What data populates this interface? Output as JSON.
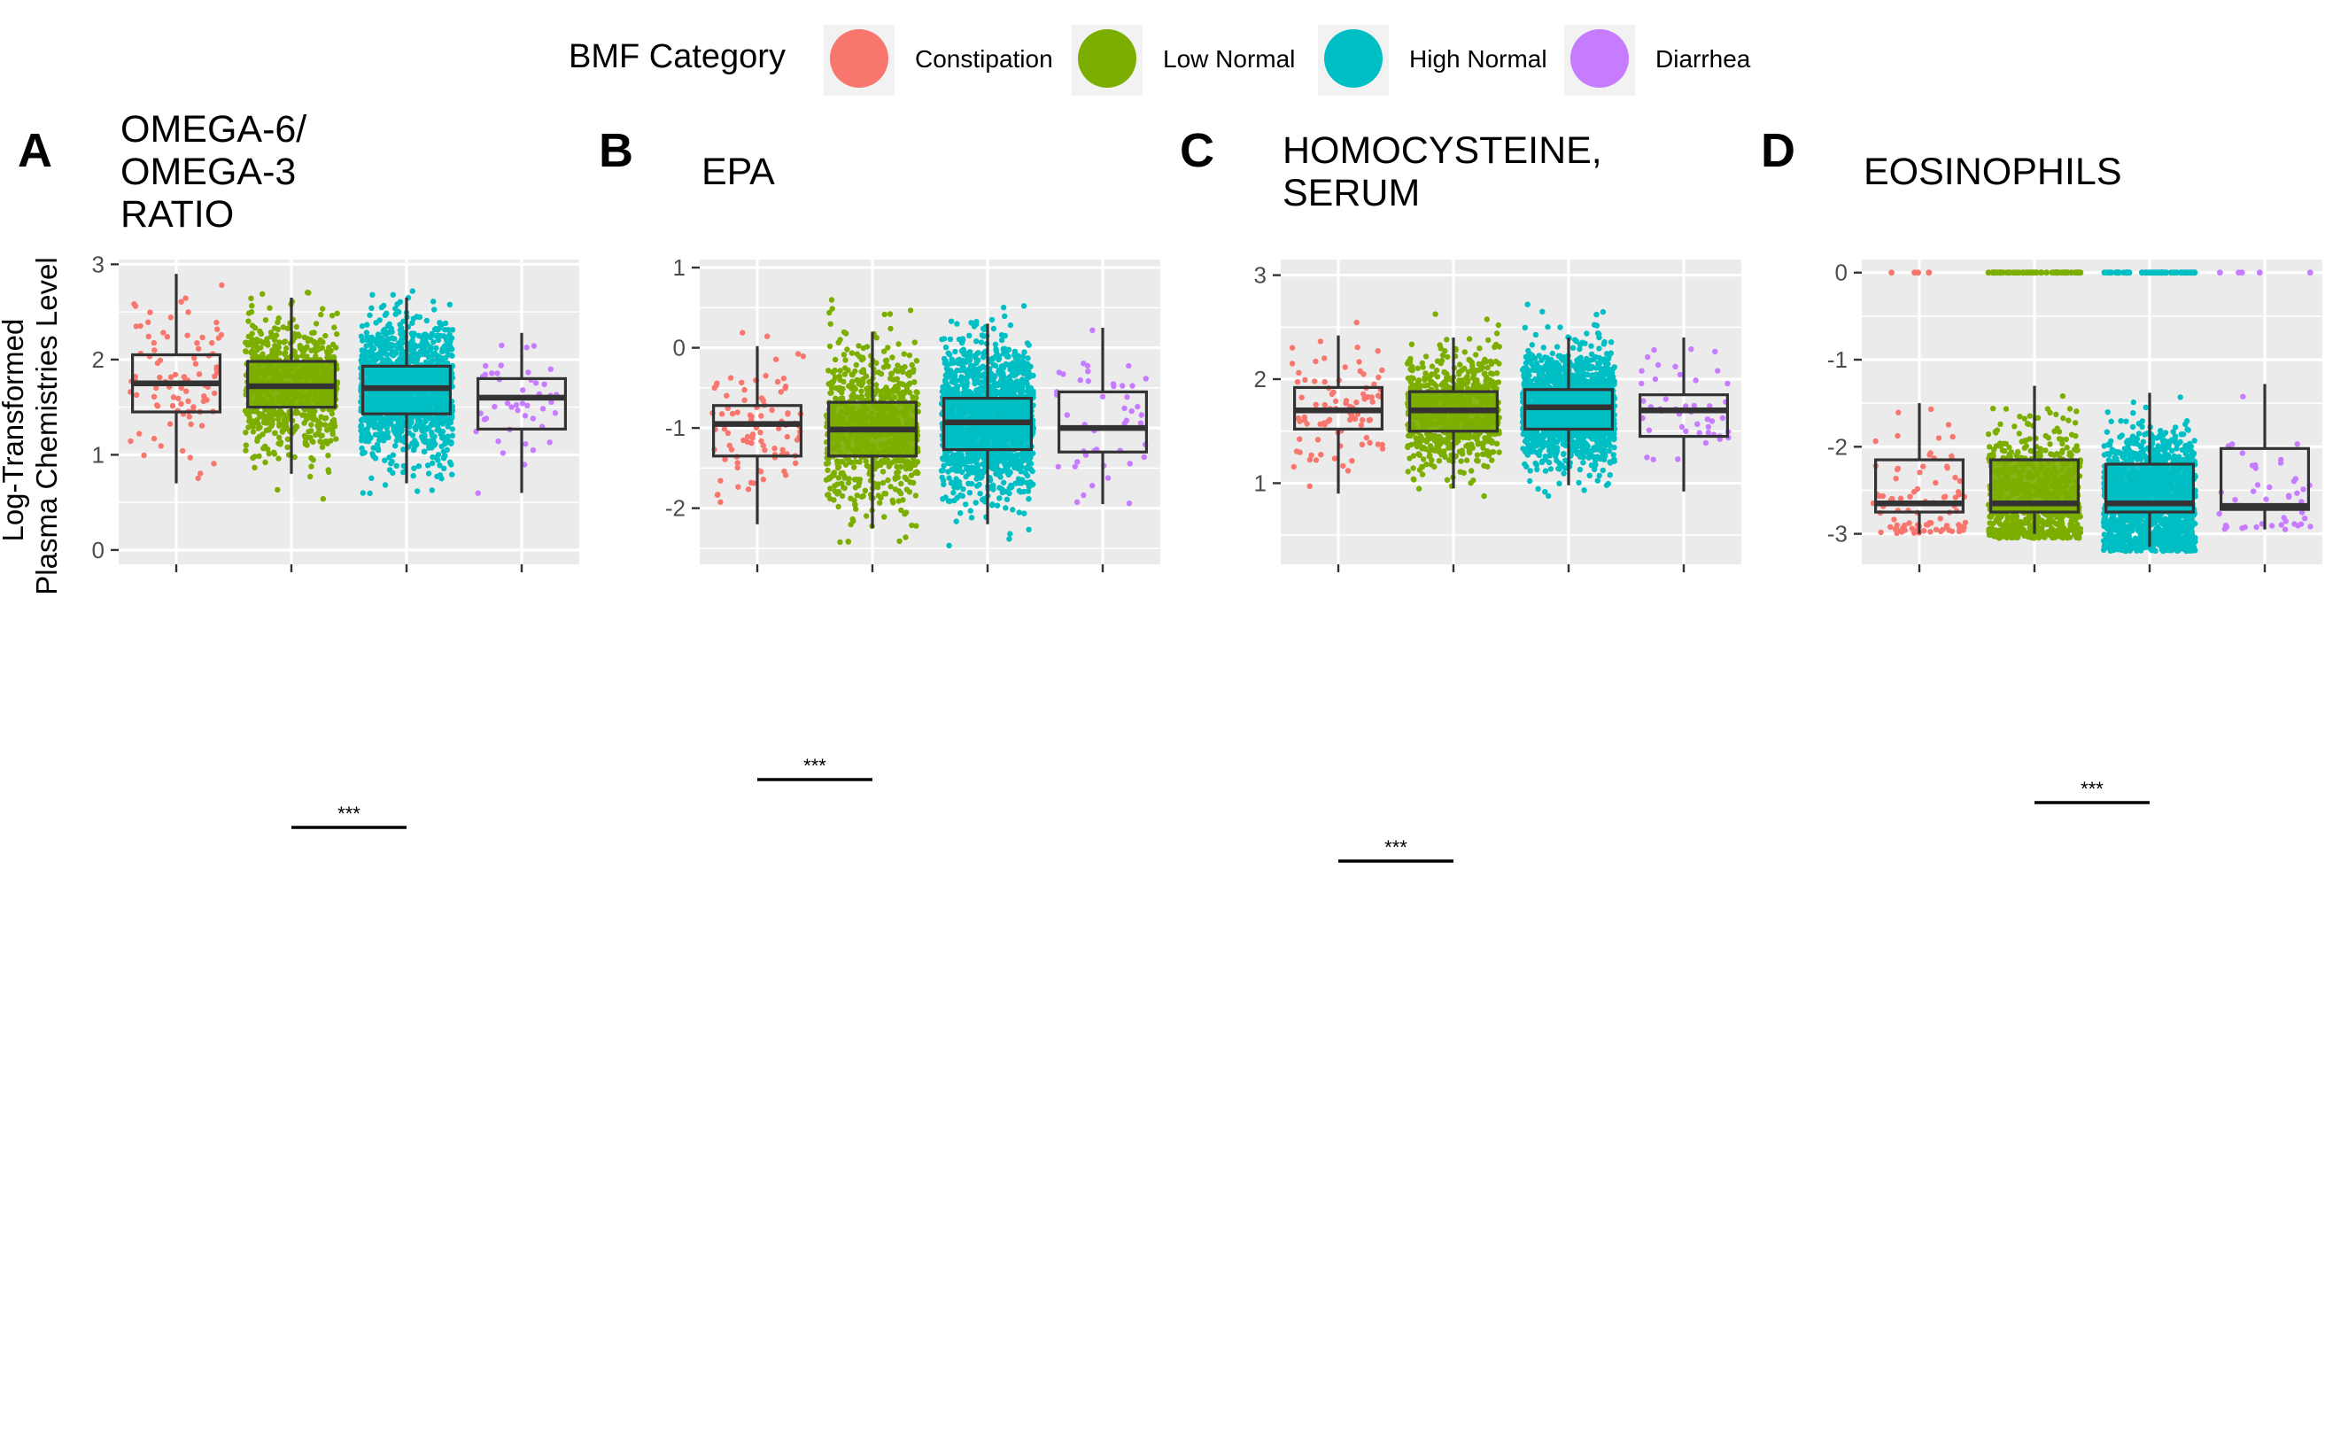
{
  "legend": {
    "title": "BMF Category",
    "placement": "top",
    "entries": [
      {
        "label": "Constipation",
        "color": "#F8766D"
      },
      {
        "label": "Low Normal",
        "color": "#7CAE00"
      },
      {
        "label": "High Normal",
        "color": "#00BFC4"
      },
      {
        "label": "Diarrhea",
        "color": "#C77CFF"
      }
    ]
  },
  "y_axis_title": [
    "Log-Transformed",
    "Plasma Chemistries Level"
  ],
  "panel_background": "#EBEBEB",
  "chart_data": [
    {
      "type": "boxplot",
      "panel_tag": "A",
      "title_lines": [
        "OMEGA-6/",
        "OMEGA-3",
        "RATIO"
      ],
      "categories": [
        "Constipation",
        "Low Normal",
        "High Normal",
        "Diarrhea"
      ],
      "ylim": [
        -0.15,
        3.05
      ],
      "y_ticks": [
        0,
        1,
        2,
        3
      ],
      "y_tick_labels": [
        "0",
        "1",
        "2",
        "3"
      ],
      "grid": true,
      "boxes": [
        {
          "category": "Constipation",
          "whisker_low": 0.7,
          "q1": 1.45,
          "median": 1.75,
          "q3": 2.05,
          "whisker_high": 2.9,
          "y_range": [
            0.7,
            2.95
          ],
          "n_points": 90,
          "filled": false
        },
        {
          "category": "Low Normal",
          "whisker_low": 0.8,
          "q1": 1.5,
          "median": 1.72,
          "q3": 1.98,
          "whisker_high": 2.65,
          "y_range": [
            0.45,
            2.8
          ],
          "n_points": 700,
          "filled": true
        },
        {
          "category": "High Normal",
          "whisker_low": 0.7,
          "q1": 1.43,
          "median": 1.7,
          "q3": 1.93,
          "whisker_high": 2.65,
          "y_range": [
            -0.05,
            2.72
          ],
          "n_points": 1300,
          "filled": true
        },
        {
          "category": "Diarrhea",
          "whisker_low": 0.6,
          "q1": 1.27,
          "median": 1.6,
          "q3": 1.8,
          "whisker_high": 2.28,
          "y_range": [
            0.55,
            2.3
          ],
          "n_points": 45,
          "filled": false
        }
      ],
      "significance": {
        "label": "***",
        "from": "Low Normal",
        "to": "High Normal"
      }
    },
    {
      "type": "boxplot",
      "panel_tag": "B",
      "title_lines": [
        "EPA"
      ],
      "categories": [
        "Constipation",
        "Low Normal",
        "High Normal",
        "Diarrhea"
      ],
      "ylim": [
        -2.7,
        1.1
      ],
      "y_ticks": [
        1,
        0,
        -1,
        -2
      ],
      "y_tick_labels": [
        "1",
        "0",
        "-1",
        "-2"
      ],
      "grid": true,
      "boxes": [
        {
          "category": "Constipation",
          "whisker_low": -2.2,
          "q1": -1.35,
          "median": -0.95,
          "q3": -0.72,
          "whisker_high": 0.02,
          "y_range": [
            -2.25,
            0.7
          ],
          "n_points": 90,
          "filled": false
        },
        {
          "category": "Low Normal",
          "whisker_low": -2.25,
          "q1": -1.35,
          "median": -1.02,
          "q3": -0.68,
          "whisker_high": 0.2,
          "y_range": [
            -2.45,
            0.6
          ],
          "n_points": 750,
          "filled": true
        },
        {
          "category": "High Normal",
          "whisker_low": -2.2,
          "q1": -1.27,
          "median": -0.93,
          "q3": -0.63,
          "whisker_high": 0.3,
          "y_range": [
            -2.55,
            0.9
          ],
          "n_points": 1500,
          "filled": true
        },
        {
          "category": "Diarrhea",
          "whisker_low": -1.95,
          "q1": -1.3,
          "median": -1.0,
          "q3": -0.55,
          "whisker_high": 0.25,
          "y_range": [
            -1.95,
            0.4
          ],
          "n_points": 45,
          "filled": false
        }
      ],
      "significance": {
        "label": "***",
        "from": "Constipation",
        "to": "Low Normal"
      }
    },
    {
      "type": "boxplot",
      "panel_tag": "C",
      "title_lines": [
        "HOMOCYSTEINE,",
        "SERUM"
      ],
      "categories": [
        "Constipation",
        "Low Normal",
        "High Normal",
        "Diarrhea"
      ],
      "ylim": [
        0.22,
        3.15
      ],
      "y_ticks": [
        1,
        2,
        3
      ],
      "y_tick_labels": [
        "1",
        "2",
        "3"
      ],
      "grid": true,
      "boxes": [
        {
          "category": "Constipation",
          "whisker_low": 0.9,
          "q1": 1.52,
          "median": 1.7,
          "q3": 1.92,
          "whisker_high": 2.42,
          "y_range": [
            0.55,
            2.7
          ],
          "n_points": 90,
          "filled": false
        },
        {
          "category": "Low Normal",
          "whisker_low": 0.95,
          "q1": 1.5,
          "median": 1.7,
          "q3": 1.88,
          "whisker_high": 2.4,
          "y_range": [
            0.35,
            2.8
          ],
          "n_points": 750,
          "filled": true
        },
        {
          "category": "High Normal",
          "whisker_low": 0.98,
          "q1": 1.52,
          "median": 1.73,
          "q3": 1.9,
          "whisker_high": 2.4,
          "y_range": [
            0.4,
            3.05
          ],
          "n_points": 1500,
          "filled": true
        },
        {
          "category": "Diarrhea",
          "whisker_low": 0.92,
          "q1": 1.45,
          "median": 1.7,
          "q3": 1.85,
          "whisker_high": 2.4,
          "y_range": [
            0.55,
            2.4
          ],
          "n_points": 45,
          "filled": false
        }
      ],
      "significance": {
        "label": "***",
        "from": "Constipation",
        "to": "Low Normal"
      }
    },
    {
      "type": "boxplot",
      "panel_tag": "D",
      "title_lines": [
        "EOSINOPHILS"
      ],
      "categories": [
        "Constipation",
        "Low Normal",
        "High Normal",
        "Diarrhea"
      ],
      "ylim": [
        -3.35,
        0.15
      ],
      "y_ticks": [
        0,
        -1,
        -2,
        -3
      ],
      "y_tick_labels": [
        "0",
        "-1",
        "-2",
        "-3"
      ],
      "grid": true,
      "boxes": [
        {
          "category": "Constipation",
          "whisker_low": -3.0,
          "q1": -2.75,
          "median": -2.65,
          "q3": -2.15,
          "whisker_high": -1.5,
          "y_range": [
            -3.0,
            -1.05
          ],
          "n_points": 90,
          "filled": false
        },
        {
          "category": "Low Normal",
          "whisker_low": -3.0,
          "q1": -2.75,
          "median": -2.65,
          "q3": -2.15,
          "whisker_high": -1.3,
          "y_range": [
            -3.05,
            -0.95
          ],
          "n_points": 750,
          "filled": true
        },
        {
          "category": "High Normal",
          "whisker_low": -3.15,
          "q1": -2.75,
          "median": -2.65,
          "q3": -2.2,
          "whisker_high": -1.38,
          "y_range": [
            -3.2,
            -0.95
          ],
          "n_points": 1500,
          "filled": true
        },
        {
          "category": "Diarrhea",
          "whisker_low": -2.95,
          "q1": -2.72,
          "median": -2.68,
          "q3": -2.02,
          "whisker_high": -1.28,
          "y_range": [
            -2.95,
            -1.1
          ],
          "n_points": 45,
          "filled": false
        }
      ],
      "zero_values": [
        {
          "category": "Constipation",
          "n_points": 5
        },
        {
          "category": "Low Normal",
          "n_points": 60
        },
        {
          "category": "High Normal",
          "n_points": 60
        },
        {
          "category": "Diarrhea",
          "n_points": 5
        }
      ],
      "significance": {
        "label": "***",
        "from": "Low Normal",
        "to": "High Normal"
      }
    }
  ]
}
